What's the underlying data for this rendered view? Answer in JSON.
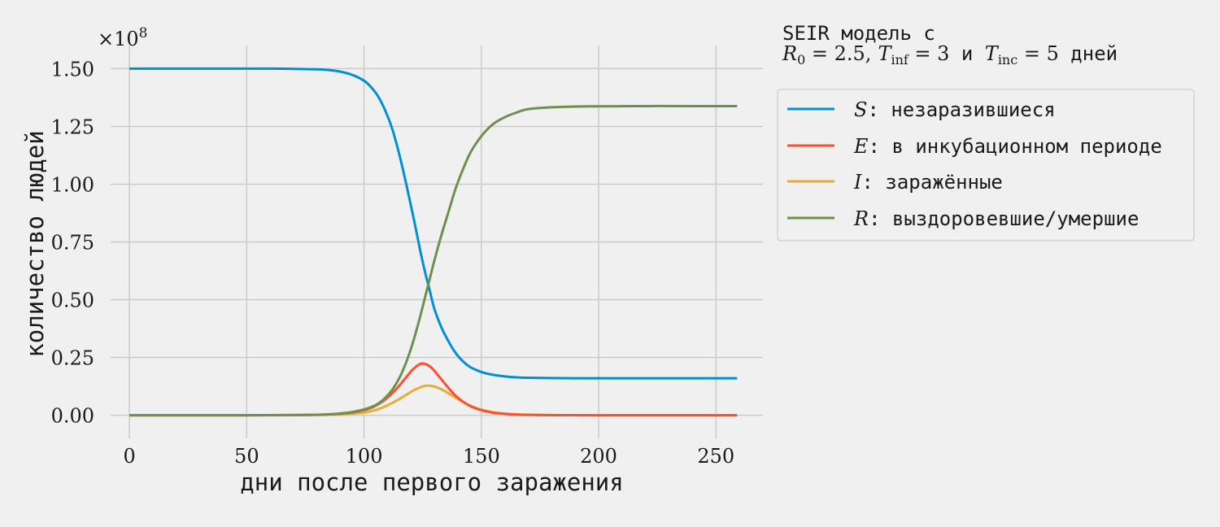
{
  "chart_data": {
    "type": "line",
    "title_lines": [
      "SEIR модель с",
      "R₀ = 2.5,  Tinf = 3 и Tinc = 5 дней"
    ],
    "title_parts": {
      "line1": "SEIR модель с",
      "r_sym": "R",
      "r_sub": "0",
      "r_eq": " = 2.5,",
      "tinf_sym": "T",
      "tinf_sub": "inf",
      "tinf_eq": " = 3",
      "and": " и ",
      "tinc_sym": "T",
      "tinc_sub": "inc",
      "tinc_eq": " = 5",
      "days": " дней"
    },
    "xlabel": "дни после первого заражения",
    "ylabel": "количество людей",
    "y_multiplier_text": "×10",
    "y_multiplier_exp": "8",
    "xlim": [
      -8,
      270
    ],
    "ylim": [
      -0.1,
      1.6
    ],
    "xticks": [
      0,
      50,
      100,
      150,
      200,
      250
    ],
    "xtick_labels": [
      "0",
      "50",
      "100",
      "150",
      "200",
      "250"
    ],
    "yticks": [
      0,
      0.25,
      0.5,
      0.75,
      1.0,
      1.25,
      1.5
    ],
    "ytick_labels": [
      "0.00",
      "0.25",
      "0.50",
      "0.75",
      "1.00",
      "1.25",
      "1.50"
    ],
    "grid": true,
    "legend_position": "right-outside",
    "x": [
      0,
      20,
      40,
      60,
      70,
      80,
      85,
      90,
      95,
      100,
      103,
      106,
      109,
      112,
      115,
      118,
      121,
      124,
      126,
      128,
      130,
      133,
      136,
      139,
      142,
      145,
      148,
      151,
      155,
      160,
      165,
      170,
      180,
      190,
      200,
      220,
      240,
      259
    ],
    "series": [
      {
        "key": "S",
        "symbol": "S",
        "name": "незаразившиеся",
        "color": "#008fd5",
        "values": [
          1.5,
          1.5,
          1.5,
          1.5,
          1.499,
          1.497,
          1.494,
          1.487,
          1.473,
          1.448,
          1.42,
          1.38,
          1.32,
          1.24,
          1.13,
          1.0,
          0.86,
          0.71,
          0.62,
          0.54,
          0.46,
          0.38,
          0.32,
          0.27,
          0.235,
          0.21,
          0.195,
          0.184,
          0.175,
          0.168,
          0.164,
          0.162,
          0.161,
          0.16,
          0.16,
          0.16,
          0.16,
          0.16
        ]
      },
      {
        "key": "E",
        "symbol": "E",
        "name": "в инкубационном периоде",
        "color": "#fc4f30",
        "values": [
          0,
          0,
          0,
          0.0002,
          0.0008,
          0.002,
          0.004,
          0.007,
          0.012,
          0.022,
          0.032,
          0.047,
          0.068,
          0.095,
          0.128,
          0.165,
          0.2,
          0.222,
          0.222,
          0.212,
          0.192,
          0.155,
          0.118,
          0.085,
          0.06,
          0.041,
          0.028,
          0.019,
          0.011,
          0.006,
          0.003,
          0.0015,
          0.0004,
          0.0001,
          0,
          0,
          0,
          0
        ]
      },
      {
        "key": "I",
        "symbol": "I",
        "name": "заражённые",
        "color": "#e5ae38",
        "values": [
          0,
          0,
          0,
          0.0001,
          0.0004,
          0.001,
          0.002,
          0.004,
          0.007,
          0.012,
          0.018,
          0.026,
          0.038,
          0.053,
          0.07,
          0.088,
          0.107,
          0.121,
          0.127,
          0.128,
          0.124,
          0.112,
          0.095,
          0.076,
          0.058,
          0.043,
          0.031,
          0.022,
          0.013,
          0.007,
          0.004,
          0.002,
          0.0006,
          0.0002,
          0,
          0,
          0,
          0
        ]
      },
      {
        "key": "R",
        "symbol": "R",
        "name": "выздоровевшие/умершие",
        "color": "#6d904f",
        "values": [
          0,
          0,
          0,
          0.0002,
          0.001,
          0.002,
          0.004,
          0.008,
          0.014,
          0.025,
          0.035,
          0.05,
          0.075,
          0.11,
          0.16,
          0.23,
          0.32,
          0.43,
          0.51,
          0.59,
          0.67,
          0.78,
          0.88,
          0.98,
          1.06,
          1.13,
          1.18,
          1.22,
          1.26,
          1.29,
          1.31,
          1.325,
          1.333,
          1.336,
          1.337,
          1.338,
          1.338,
          1.338
        ]
      }
    ]
  }
}
